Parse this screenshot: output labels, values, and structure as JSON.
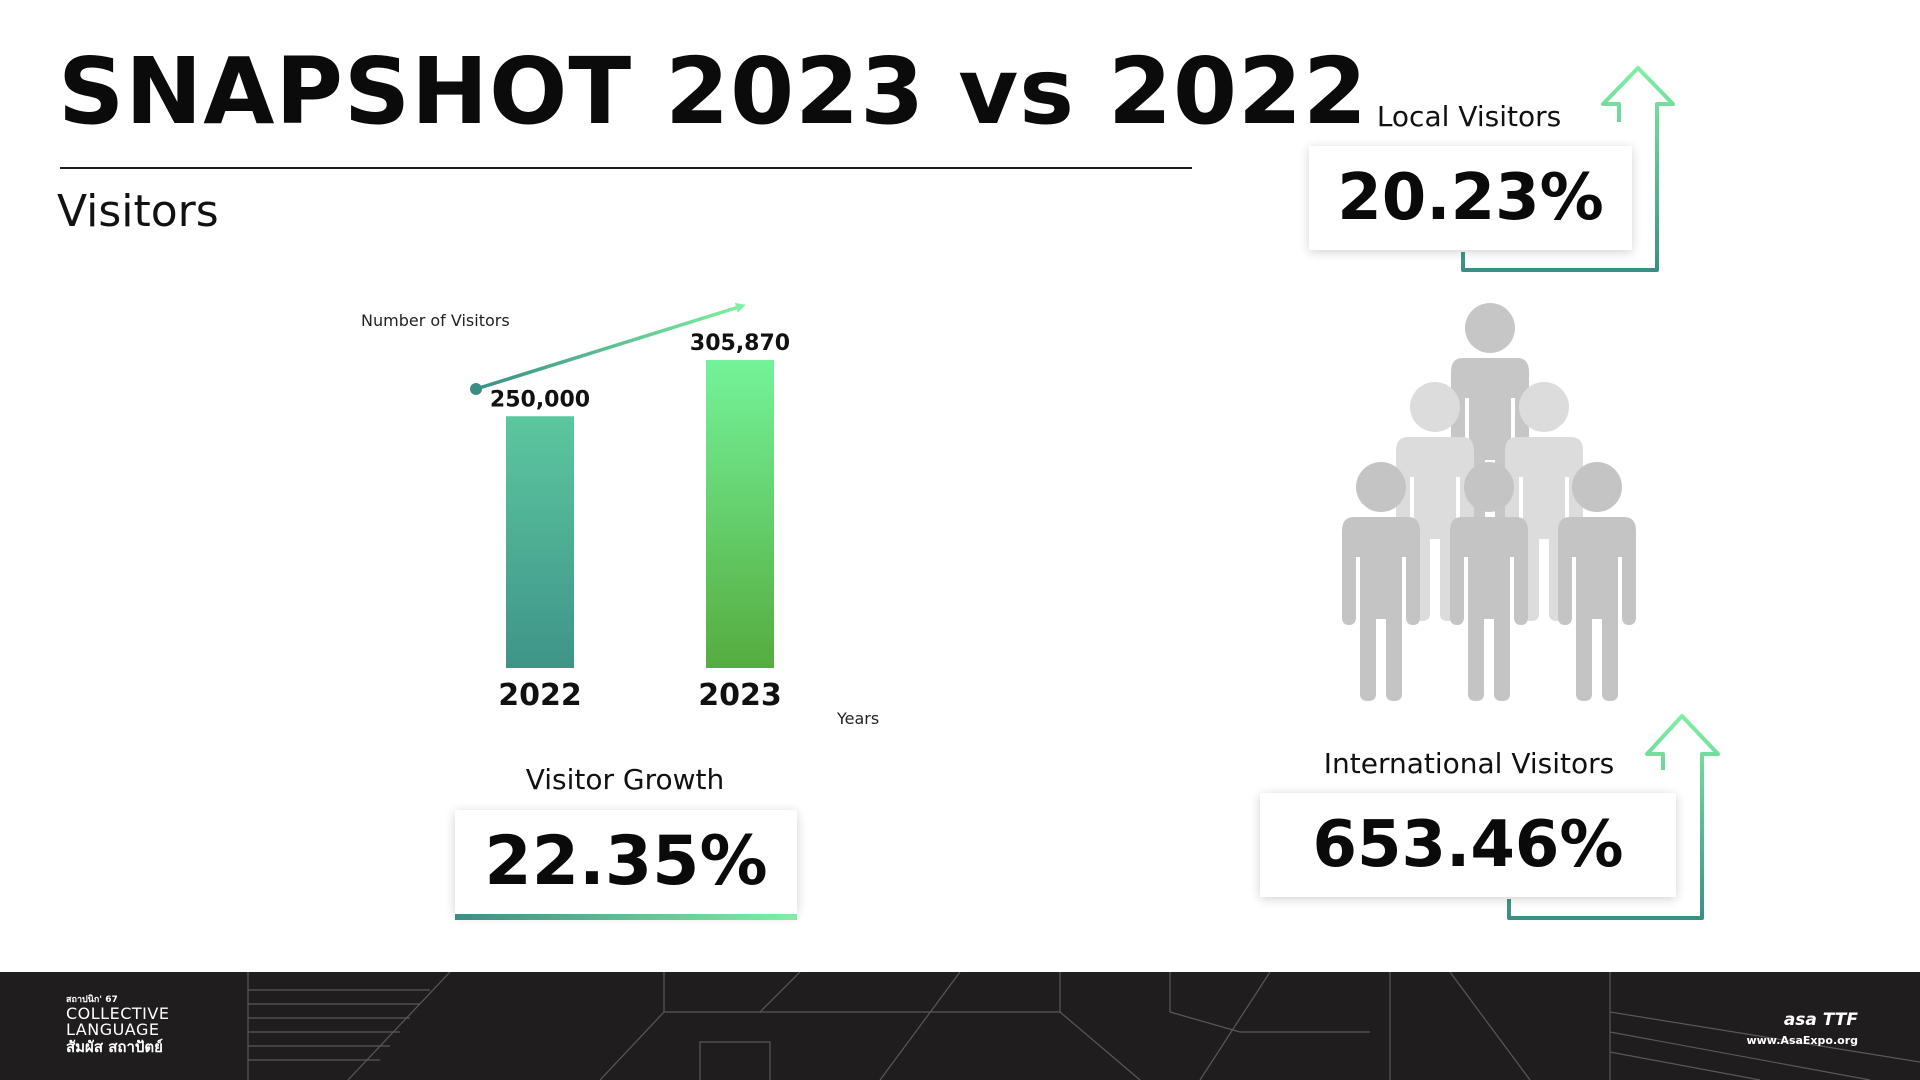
{
  "header": {
    "title": "SNAPSHOT 2023 vs 2022",
    "subtitle": "Visitors"
  },
  "chart_data": {
    "type": "bar",
    "categories": [
      "2022",
      "2023"
    ],
    "values": [
      250000,
      305870
    ],
    "value_labels": [
      "250,000",
      "305,870"
    ],
    "ylabel": "Number of Visitors",
    "xlabel": "Years",
    "bar_colors": [
      [
        "#5cc79f",
        "#3f9488"
      ],
      [
        "#74f39a",
        "#56ac3f"
      ]
    ],
    "trend_arrow": true
  },
  "stats": {
    "growth": {
      "label": "Visitor Growth",
      "value": "22.35%"
    },
    "local": {
      "label": "Local Visitors",
      "value": "20.23%"
    },
    "international": {
      "label": "International Visitors",
      "value": "653.46%"
    }
  },
  "people_icon": "crowd-icon",
  "colors": {
    "accent_teal": "#3a8f84",
    "accent_green": "#7ff0a2",
    "footer_bg": "#1f1d1d"
  },
  "footer": {
    "left_logo": {
      "line1": "สถาปนิก' 67",
      "line2": "COLLECTIVE",
      "line3": "LANGUAGE",
      "line4": "สัมผัส สถาปัตย์"
    },
    "right_logo": {
      "brand": "asa  TTF",
      "url": "www.AsaExpo.org"
    }
  }
}
